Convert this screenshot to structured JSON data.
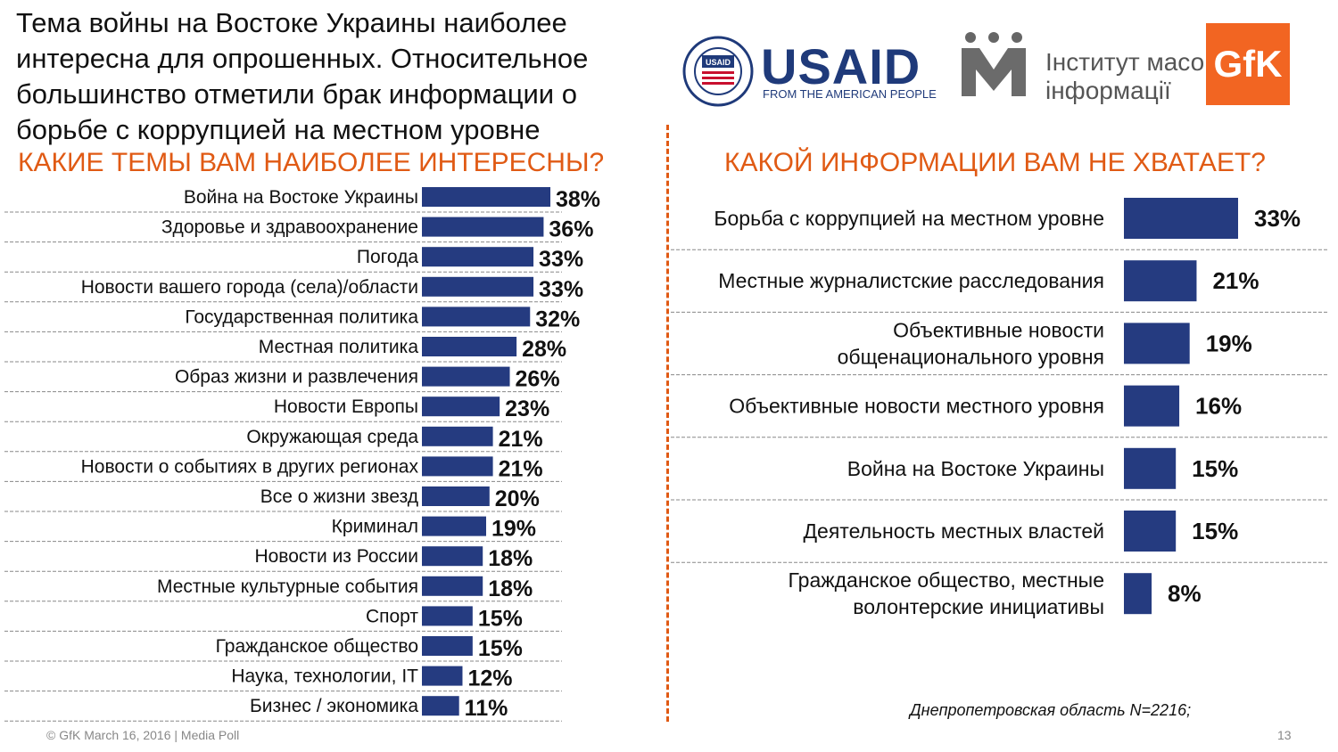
{
  "headline": "Тема войны на Востоке Украины наиболее интересна для опрошенных. Относительное большинство отметили брак информации о борьбе с коррупцией на местном уровне",
  "logos": {
    "usaid_word": "USAID",
    "usaid_sub": "FROM THE AMERICAN PEOPLE",
    "usaid_seal": "UNITED STATES AGENCY INTERNATIONAL DEVELOPMENT",
    "usaid_seal_center": "USAID",
    "imi_text_line1": "Інститут масової",
    "imi_text_line2": "інформації",
    "gfk": "GfK"
  },
  "colors": {
    "bar": "#253b80",
    "accent": "#e05a14",
    "gfk": "#f26522"
  },
  "footer": {
    "left": "© GfK March 16, 2016 | Media Poll",
    "page": "13"
  },
  "note": "Днепропетровская область N=2216;",
  "chart_data": [
    {
      "type": "bar",
      "orientation": "horizontal",
      "title": "КАКИЕ ТЕМЫ ВАМ НАИБОЛЕЕ ИНТЕРЕСНЫ?",
      "categories": [
        "Война на Востоке Украины",
        "Здоровье и здравоохранение",
        "Погода",
        "Новости вашего города (села)/области",
        "Государственная политика",
        "Местная политика",
        "Образ жизни и развлечения",
        "Новости Европы",
        "Окружающая среда",
        "Новости о событиях в других регионах",
        "Все о жизни звезд",
        "Криминал",
        "Новости из России",
        "Местные культурные события",
        "Спорт",
        "Гражданское общество",
        "Наука, технологии, IT",
        "Бизнес / экономика"
      ],
      "values": [
        38,
        36,
        33,
        33,
        32,
        28,
        26,
        23,
        21,
        21,
        20,
        19,
        18,
        18,
        15,
        15,
        12,
        11
      ],
      "value_labels": [
        "38%",
        "36%",
        "33%",
        "33%",
        "32%",
        "28%",
        "26%",
        "23%",
        "21%",
        "21%",
        "20%",
        "19%",
        "18%",
        "18%",
        "15%",
        "15%",
        "12%",
        "11%"
      ],
      "unit": "%"
    },
    {
      "type": "bar",
      "orientation": "horizontal",
      "title": "КАКОЙ ИНФОРМАЦИИ ВАМ НЕ ХВАТАЕТ?",
      "categories": [
        [
          "Борьба с коррупцией на местном уровне"
        ],
        [
          "Местные журналистские расследования"
        ],
        [
          "Объективные новости",
          "общенационального уровня"
        ],
        [
          "Объективные новости местного уровня"
        ],
        [
          "Война на Востоке Украины"
        ],
        [
          "Деятельность местных властей"
        ],
        [
          "Гражданское общество, местные",
          "волонтерские инициативы"
        ]
      ],
      "values": [
        33,
        21,
        19,
        16,
        15,
        15,
        8
      ],
      "value_labels": [
        "33%",
        "21%",
        "19%",
        "16%",
        "15%",
        "15%",
        "8%"
      ],
      "unit": "%"
    }
  ]
}
